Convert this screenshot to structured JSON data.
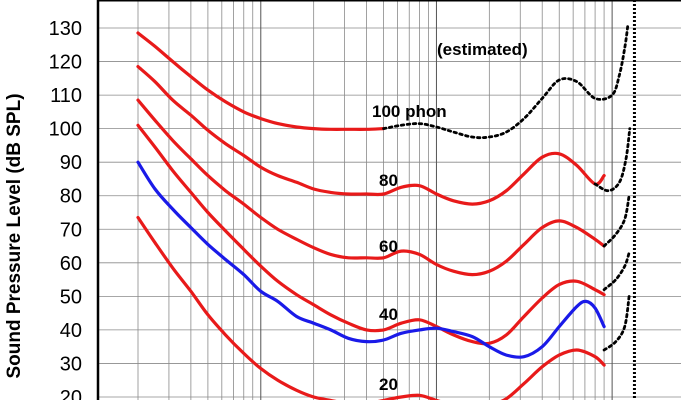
{
  "chart_data": {
    "type": "line",
    "title": "",
    "ylabel": "Sound Pressure Level (dB SPL)",
    "xlabel": "",
    "x_scale": "log",
    "y_ticks": [
      20,
      30,
      40,
      50,
      60,
      70,
      80,
      90,
      100,
      110,
      120,
      130
    ],
    "y_visible_range": [
      17,
      131
    ],
    "x_visible_range_hz": [
      14,
      14500
    ],
    "grid": true,
    "annotations": [
      "(estimated)",
      "100 phon",
      "80",
      "60",
      "40",
      "20"
    ],
    "colors": {
      "iso_curve": "#e81a1a",
      "estimated": "#000000",
      "reference_curve": "#1a1ae8",
      "axes": "#000000"
    },
    "series": [
      {
        "label": "100 phon",
        "style": "solid",
        "points": [
          [
            20,
            128.5
          ],
          [
            25,
            124.5
          ],
          [
            31.5,
            120
          ],
          [
            40,
            115.5
          ],
          [
            50,
            111.5
          ],
          [
            63,
            108
          ],
          [
            80,
            105
          ],
          [
            100,
            103
          ],
          [
            125,
            101.5
          ],
          [
            160,
            100.5
          ],
          [
            200,
            100
          ],
          [
            250,
            99.8
          ],
          [
            315,
            99.8
          ],
          [
            400,
            99.8
          ],
          [
            500,
            100
          ]
        ]
      },
      {
        "label": "100 phon",
        "style": "dotted",
        "points": [
          [
            500,
            100
          ],
          [
            630,
            101
          ],
          [
            800,
            101.5
          ],
          [
            1000,
            100.5
          ],
          [
            1250,
            99
          ],
          [
            1600,
            97.5
          ],
          [
            2000,
            97.5
          ],
          [
            2500,
            99
          ],
          [
            3150,
            103
          ],
          [
            4000,
            109
          ],
          [
            5000,
            114.5
          ],
          [
            6300,
            114
          ],
          [
            8000,
            109
          ],
          [
            10000,
            110
          ],
          [
            11000,
            116
          ],
          [
            11800,
            124
          ],
          [
            12300,
            131
          ]
        ]
      },
      {
        "label": "80",
        "style": "solid",
        "points": [
          [
            20,
            118.5
          ],
          [
            25,
            114
          ],
          [
            31.5,
            108.5
          ],
          [
            40,
            104
          ],
          [
            50,
            99.5
          ],
          [
            63,
            95.5
          ],
          [
            80,
            92
          ],
          [
            100,
            88.5
          ],
          [
            125,
            86
          ],
          [
            160,
            84
          ],
          [
            200,
            82
          ],
          [
            250,
            81
          ],
          [
            315,
            80.5
          ],
          [
            400,
            80.5
          ],
          [
            500,
            80.5
          ],
          [
            630,
            82.5
          ],
          [
            800,
            83
          ],
          [
            1000,
            80.5
          ],
          [
            1250,
            78.5
          ],
          [
            1600,
            77.5
          ],
          [
            2000,
            78.5
          ],
          [
            2500,
            81.5
          ],
          [
            3150,
            86.5
          ],
          [
            4000,
            91.5
          ],
          [
            5000,
            92.5
          ],
          [
            6300,
            89
          ],
          [
            8000,
            83.5
          ],
          [
            9000,
            86
          ]
        ]
      },
      {
        "label": "80",
        "style": "dotted",
        "points": [
          [
            8000,
            83.5
          ],
          [
            9500,
            81.5
          ],
          [
            11000,
            84
          ],
          [
            12000,
            91
          ],
          [
            12600,
            100
          ]
        ]
      },
      {
        "label": "60",
        "style": "solid",
        "points": [
          [
            20,
            108.5
          ],
          [
            25,
            102.5
          ],
          [
            31.5,
            96.5
          ],
          [
            40,
            91
          ],
          [
            50,
            86
          ],
          [
            63,
            81.5
          ],
          [
            80,
            77.5
          ],
          [
            100,
            73.5
          ],
          [
            125,
            70
          ],
          [
            160,
            67
          ],
          [
            200,
            64.5
          ],
          [
            250,
            62.5
          ],
          [
            315,
            61.5
          ],
          [
            400,
            61.5
          ],
          [
            500,
            61.5
          ],
          [
            630,
            63.5
          ],
          [
            800,
            62.5
          ],
          [
            1000,
            59.5
          ],
          [
            1250,
            57.5
          ],
          [
            1600,
            56.5
          ],
          [
            2000,
            57.5
          ],
          [
            2500,
            60.5
          ],
          [
            3150,
            65.5
          ],
          [
            4000,
            70.5
          ],
          [
            5000,
            72.5
          ],
          [
            6300,
            70.5
          ],
          [
            8000,
            67
          ],
          [
            9000,
            65
          ]
        ]
      },
      {
        "label": "60",
        "style": "dotted",
        "points": [
          [
            9000,
            65
          ],
          [
            10500,
            68.5
          ],
          [
            11800,
            73
          ],
          [
            12500,
            80
          ]
        ]
      },
      {
        "label": "40",
        "style": "solid",
        "points": [
          [
            20,
            101
          ],
          [
            25,
            94.5
          ],
          [
            31.5,
            87.5
          ],
          [
            40,
            81
          ],
          [
            50,
            75
          ],
          [
            63,
            69.5
          ],
          [
            80,
            64
          ],
          [
            100,
            59
          ],
          [
            125,
            54.5
          ],
          [
            160,
            50.5
          ],
          [
            200,
            47.5
          ],
          [
            250,
            44.5
          ],
          [
            315,
            42
          ],
          [
            400,
            40
          ],
          [
            500,
            40
          ],
          [
            630,
            42
          ],
          [
            800,
            43
          ],
          [
            1000,
            41
          ],
          [
            1250,
            38.5
          ],
          [
            1600,
            36.5
          ],
          [
            2000,
            36
          ],
          [
            2500,
            38.5
          ],
          [
            3150,
            44
          ],
          [
            4000,
            49.5
          ],
          [
            5000,
            53.5
          ],
          [
            6300,
            54.5
          ],
          [
            8000,
            52
          ],
          [
            9000,
            50.5
          ]
        ]
      },
      {
        "label": "40",
        "style": "dotted",
        "points": [
          [
            9000,
            52
          ],
          [
            10500,
            55
          ],
          [
            11800,
            59
          ],
          [
            12500,
            63
          ]
        ]
      },
      {
        "label": "20",
        "style": "solid",
        "points": [
          [
            20,
            73.5
          ],
          [
            25,
            66
          ],
          [
            31.5,
            58.5
          ],
          [
            40,
            51.5
          ],
          [
            50,
            44.5
          ],
          [
            63,
            38.5
          ],
          [
            80,
            33
          ],
          [
            100,
            28.5
          ],
          [
            125,
            25
          ],
          [
            160,
            22
          ],
          [
            200,
            20
          ],
          [
            250,
            19
          ],
          [
            315,
            18
          ],
          [
            400,
            18
          ],
          [
            500,
            19
          ],
          [
            630,
            20
          ],
          [
            800,
            20.5
          ],
          [
            1000,
            19
          ],
          [
            1250,
            17.5
          ],
          [
            1600,
            17
          ],
          [
            2000,
            17.5
          ],
          [
            2500,
            19.5
          ],
          [
            3150,
            24
          ],
          [
            4000,
            29
          ],
          [
            5000,
            32.5
          ],
          [
            6300,
            34
          ],
          [
            8000,
            32
          ],
          [
            9000,
            29.5
          ]
        ]
      },
      {
        "label": "20",
        "style": "dotted",
        "points": [
          [
            9000,
            34
          ],
          [
            10500,
            36.5
          ],
          [
            11800,
            41
          ],
          [
            12500,
            50
          ]
        ]
      },
      {
        "label": "",
        "style": "solid-blue",
        "points": [
          [
            20,
            90
          ],
          [
            25,
            82
          ],
          [
            31.5,
            76
          ],
          [
            40,
            70.5
          ],
          [
            50,
            65.5
          ],
          [
            63,
            61
          ],
          [
            80,
            56.5
          ],
          [
            100,
            51.5
          ],
          [
            125,
            48.5
          ],
          [
            160,
            44
          ],
          [
            200,
            42
          ],
          [
            250,
            40
          ],
          [
            315,
            37.5
          ],
          [
            400,
            36.5
          ],
          [
            500,
            37
          ],
          [
            630,
            39
          ],
          [
            800,
            40
          ],
          [
            1000,
            40.5
          ],
          [
            1250,
            39.5
          ],
          [
            1600,
            38
          ],
          [
            2000,
            35
          ],
          [
            2500,
            32.5
          ],
          [
            3150,
            32
          ],
          [
            4000,
            35
          ],
          [
            5000,
            41
          ],
          [
            6300,
            47
          ],
          [
            7100,
            48.5
          ],
          [
            8000,
            46.5
          ],
          [
            9000,
            41
          ]
        ]
      }
    ],
    "dashed_vertical_line_hz": 13400
  }
}
